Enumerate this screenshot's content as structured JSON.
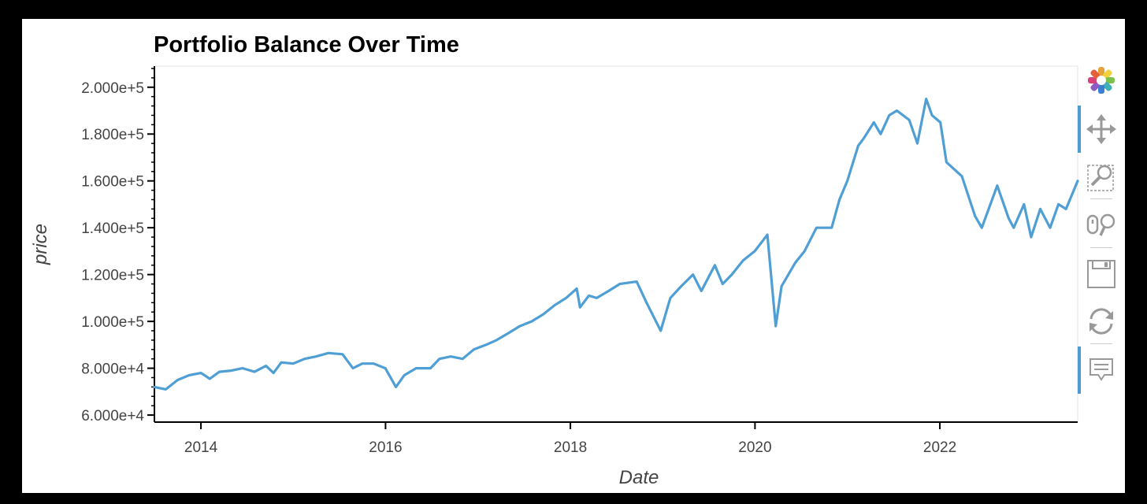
{
  "chart_data": {
    "type": "line",
    "title": "Portfolio Balance Over Time",
    "xlabel": "Date",
    "ylabel": "price",
    "xlim": [
      "2013-07-01",
      "2023-06-30"
    ],
    "ylim": [
      57000,
      209000
    ],
    "x_ticks": [
      "2014",
      "2016",
      "2018",
      "2020",
      "2022"
    ],
    "y_ticks": [
      60000,
      80000,
      100000,
      120000,
      140000,
      160000,
      180000,
      200000
    ],
    "y_tick_labels": [
      "6.000e+4",
      "8.000e+4",
      "1.000e+5",
      "1.200e+5",
      "1.400e+5",
      "1.600e+5",
      "1.800e+5",
      "2.000e+5"
    ],
    "grid": false,
    "series": [
      {
        "color": "#4f9fd4",
        "x": [
          "2013-07-01",
          "2013-08-15",
          "2013-10-01",
          "2013-11-15",
          "2014-01-01",
          "2014-02-05",
          "2014-03-15",
          "2014-05-01",
          "2014-06-15",
          "2014-08-01",
          "2014-09-15",
          "2014-10-15",
          "2014-11-15",
          "2015-01-01",
          "2015-02-15",
          "2015-04-01",
          "2015-05-20",
          "2015-07-15",
          "2015-08-25",
          "2015-10-01",
          "2015-11-15",
          "2015-12-31",
          "2016-02-11",
          "2016-03-15",
          "2016-05-01",
          "2016-06-27",
          "2016-08-01",
          "2016-09-15",
          "2016-11-01",
          "2016-12-15",
          "2017-02-01",
          "2017-03-15",
          "2017-05-01",
          "2017-06-15",
          "2017-08-01",
          "2017-09-15",
          "2017-11-01",
          "2017-12-15",
          "2018-01-26",
          "2018-02-08",
          "2018-03-15",
          "2018-04-15",
          "2018-06-01",
          "2018-07-15",
          "2018-09-20",
          "2018-10-29",
          "2018-12-24",
          "2019-01-31",
          "2019-03-15",
          "2019-05-01",
          "2019-06-03",
          "2019-07-26",
          "2019-08-26",
          "2019-10-01",
          "2019-11-15",
          "2019-12-31",
          "2020-02-19",
          "2020-03-23",
          "2020-04-15",
          "2020-06-08",
          "2020-07-15",
          "2020-08-31",
          "2020-10-30",
          "2020-11-30",
          "2020-12-31",
          "2021-02-12",
          "2021-03-05",
          "2021-04-15",
          "2021-05-12",
          "2021-06-15",
          "2021-07-15",
          "2021-09-02",
          "2021-10-04",
          "2021-11-08",
          "2021-12-01",
          "2022-01-03",
          "2022-01-27",
          "2022-03-29",
          "2022-05-20",
          "2022-06-16",
          "2022-08-16",
          "2022-09-30",
          "2022-10-20",
          "2022-11-30",
          "2022-12-28",
          "2023-02-02",
          "2023-03-13",
          "2023-04-15",
          "2023-05-15",
          "2023-06-30"
        ],
        "y": [
          72000,
          71000,
          75000,
          77000,
          78000,
          75500,
          78500,
          79000,
          80000,
          78500,
          81000,
          78000,
          82500,
          82000,
          84000,
          85000,
          86500,
          86000,
          80000,
          82000,
          82000,
          80000,
          72000,
          77000,
          80000,
          80000,
          84000,
          85000,
          84000,
          88000,
          90000,
          92000,
          95000,
          98000,
          100000,
          103000,
          107000,
          110000,
          114000,
          106000,
          111000,
          110000,
          113000,
          116000,
          117000,
          108000,
          96000,
          110000,
          115000,
          120000,
          113000,
          124000,
          116000,
          120000,
          126000,
          130000,
          137000,
          98000,
          115000,
          125000,
          130000,
          140000,
          140000,
          152000,
          160000,
          175000,
          178000,
          185000,
          180000,
          188000,
          190000,
          186000,
          176000,
          195000,
          188000,
          185000,
          168000,
          162000,
          145000,
          140000,
          158000,
          144000,
          140000,
          150000,
          136000,
          148000,
          140000,
          150000,
          148000,
          160000
        ]
      }
    ]
  },
  "toolbar": {
    "tools": [
      {
        "name": "bokeh-logo-icon",
        "interactable": true
      },
      {
        "name": "pan-tool-icon",
        "interactable": true,
        "active": true
      },
      {
        "name": "box-zoom-tool-icon",
        "interactable": true
      },
      {
        "name": "wheel-zoom-tool-icon",
        "interactable": true
      },
      {
        "name": "save-tool-icon",
        "interactable": true
      },
      {
        "name": "reset-tool-icon",
        "interactable": true
      },
      {
        "name": "hover-tool-icon",
        "interactable": true,
        "active": true
      }
    ]
  }
}
